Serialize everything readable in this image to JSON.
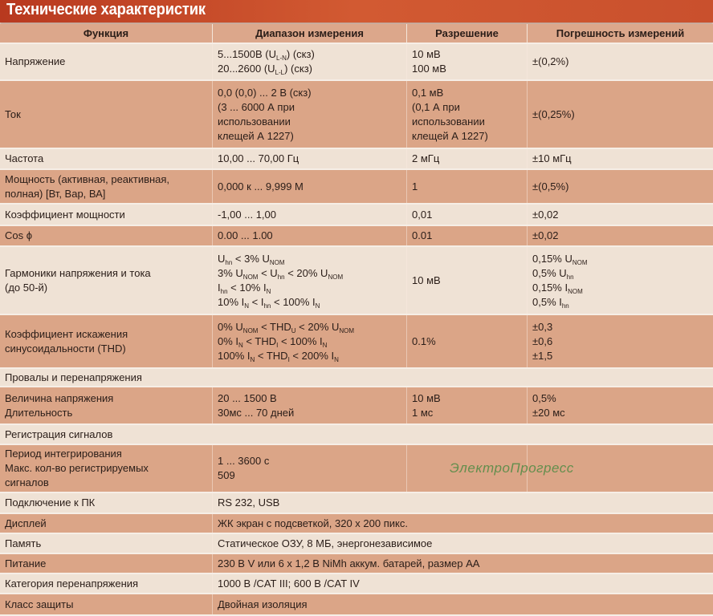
{
  "title": "Технические характеристик",
  "watermark": "ЭлектроПрогресс",
  "colors": {
    "title_bar": "#c84a2a",
    "row_light": "#efe2d5",
    "row_dark": "#dba587",
    "watermark": "#4f8a43"
  },
  "columns": [
    "Функция",
    "Диапазон измерения",
    "Разрешение",
    "Погрешность измерений"
  ],
  "rows": [
    {
      "cells": [
        [
          [
            {
              "t": "Напряжение"
            }
          ]
        ],
        [
          [
            {
              "t": "5...1500В (U"
            },
            {
              "sub": "L-N"
            },
            {
              "t": ") (скз)"
            }
          ],
          [
            {
              "t": "20...2600 (U"
            },
            {
              "sub": "L-L"
            },
            {
              "t": ") (скз)"
            }
          ]
        ],
        [
          [
            {
              "t": "10 мВ"
            }
          ],
          [
            {
              "t": "100 мВ"
            }
          ]
        ],
        [
          [
            {
              "t": "±(0,2%)"
            }
          ]
        ]
      ]
    },
    {
      "cells": [
        [
          [
            {
              "t": "Ток"
            }
          ]
        ],
        [
          [
            {
              "t": "0,0 (0,0) ... 2 В (скз)"
            }
          ],
          [
            {
              "t": "(3 ... 6000 А при"
            }
          ],
          [
            {
              "t": "использовании"
            }
          ],
          [
            {
              "t": "клещей А 1227)"
            }
          ]
        ],
        [
          [
            {
              "t": "0,1 мВ"
            }
          ],
          [
            {
              "t": "(0,1 А при"
            }
          ],
          [
            {
              "t": "использовании"
            }
          ],
          [
            {
              "t": "клещей А 1227)"
            }
          ]
        ],
        [
          [
            {
              "t": "±(0,25%)"
            }
          ]
        ]
      ]
    },
    {
      "cells": [
        [
          [
            {
              "t": "Частота"
            }
          ]
        ],
        [
          [
            {
              "t": "10,00 ... 70,00 Гц"
            }
          ]
        ],
        [
          [
            {
              "t": "2 мГц"
            }
          ]
        ],
        [
          [
            {
              "t": "±10 мГц"
            }
          ]
        ]
      ]
    },
    {
      "cells": [
        [
          [
            {
              "t": "Мощность (активная, реактивная,"
            }
          ],
          [
            {
              "t": "полная) [Вт, Вар, ВА]"
            }
          ]
        ],
        [
          [
            {
              "t": "0,000 к ... 9,999 М"
            }
          ]
        ],
        [
          [
            {
              "t": "1"
            }
          ]
        ],
        [
          [
            {
              "t": "±(0,5%)"
            }
          ]
        ]
      ]
    },
    {
      "cells": [
        [
          [
            {
              "t": "Коэффициент мощности"
            }
          ]
        ],
        [
          [
            {
              "t": "-1,00 ... 1,00"
            }
          ]
        ],
        [
          [
            {
              "t": "0,01"
            }
          ]
        ],
        [
          [
            {
              "t": "±0,02"
            }
          ]
        ]
      ]
    },
    {
      "cells": [
        [
          [
            {
              "t": "Cos ϕ"
            }
          ]
        ],
        [
          [
            {
              "t": "0.00 ... 1.00"
            }
          ]
        ],
        [
          [
            {
              "t": "0.01"
            }
          ]
        ],
        [
          [
            {
              "t": "±0,02"
            }
          ]
        ]
      ]
    },
    {
      "cells": [
        [
          [
            {
              "t": "Гармоники напряжения и тока"
            }
          ],
          [
            {
              "t": "(до 50-й)"
            }
          ]
        ],
        [
          [
            {
              "t": "U"
            },
            {
              "sub": "hn"
            },
            {
              "t": " < 3% U"
            },
            {
              "sub": "NOM"
            }
          ],
          [
            {
              "t": "3% U"
            },
            {
              "sub": "NOM"
            },
            {
              "t": " < U"
            },
            {
              "sub": "hn"
            },
            {
              "t": " < 20% U"
            },
            {
              "sub": "NOM"
            }
          ],
          [
            {
              "t": "I"
            },
            {
              "sub": "hn"
            },
            {
              "t": " < 10% I"
            },
            {
              "sub": "N"
            }
          ],
          [
            {
              "t": "10% I"
            },
            {
              "sub": "N"
            },
            {
              "t": " < I"
            },
            {
              "sub": "hn"
            },
            {
              "t": " < 100% I"
            },
            {
              "sub": "N"
            }
          ]
        ],
        [
          [
            {
              "t": "10 мВ"
            }
          ]
        ],
        [
          [
            {
              "t": "0,15% U"
            },
            {
              "sub": "NOM"
            }
          ],
          [
            {
              "t": "0,5% U"
            },
            {
              "sub": "hn"
            }
          ],
          [
            {
              "t": "0,15% I"
            },
            {
              "sub": "NOM"
            }
          ],
          [
            {
              "t": "0,5% I"
            },
            {
              "sub": "hn"
            }
          ]
        ]
      ]
    },
    {
      "cells": [
        [
          [
            {
              "t": "Коэффициент искажения"
            }
          ],
          [
            {
              "t": "синусоидальности (THD)"
            }
          ]
        ],
        [
          [
            {
              "t": "0% U"
            },
            {
              "sub": "NOM"
            },
            {
              "t": " < THD"
            },
            {
              "sub": "U"
            },
            {
              "t": " < 20% U"
            },
            {
              "sub": "NOM"
            }
          ],
          [
            {
              "t": "0% I"
            },
            {
              "sub": "N"
            },
            {
              "t": " < THD"
            },
            {
              "sub": "I"
            },
            {
              "t": " < 100% I"
            },
            {
              "sub": "N"
            }
          ],
          [
            {
              "t": "100% I"
            },
            {
              "sub": "N"
            },
            {
              "t": " < THD"
            },
            {
              "sub": "I"
            },
            {
              "t": " < 200% I"
            },
            {
              "sub": "N"
            }
          ]
        ],
        [
          [
            {
              "t": "0.1%"
            }
          ]
        ],
        [
          [
            {
              "t": "±0,3"
            }
          ],
          [
            {
              "t": "±0,6"
            }
          ],
          [
            {
              "t": "±1,5"
            }
          ]
        ]
      ]
    },
    {
      "section": "Провалы и перенапряжения"
    },
    {
      "cells": [
        [
          [
            {
              "t": "Величина напряжения"
            }
          ],
          [
            {
              "t": "Длительность"
            }
          ]
        ],
        [
          [
            {
              "t": "20 ... 1500 В"
            }
          ],
          [
            {
              "t": "30мс ... 70 дней"
            }
          ]
        ],
        [
          [
            {
              "t": "10 мВ"
            }
          ],
          [
            {
              "t": "1 мс"
            }
          ]
        ],
        [
          [
            {
              "t": "0,5%"
            }
          ],
          [
            {
              "t": "±20 мс"
            }
          ]
        ]
      ]
    },
    {
      "section": "Регистрация сигналов"
    },
    {
      "cells": [
        [
          [
            {
              "t": "Период интегрирования"
            }
          ],
          [
            {
              "t": "Макс. кол-во регистрируемых"
            }
          ],
          [
            {
              "t": "сигналов"
            }
          ]
        ],
        [
          [
            {
              "t": "1 ... 3600 с"
            }
          ],
          [
            {
              "t": "509"
            }
          ]
        ],
        [],
        []
      ]
    },
    {
      "label": "Подключение к ПК",
      "value": "RS 232, USB"
    },
    {
      "label": "Дисплей",
      "value": "ЖК экран с подсветкой, 320 x 200 пикс."
    },
    {
      "label": "Память",
      "value": "Статическое ОЗУ, 8 МБ, энергонезависимое"
    },
    {
      "label": "Питание",
      "value": "230 В V или 6 x 1,2 В NiMh аккум. батарей, размер АА"
    },
    {
      "label": "Категория перенапряжения",
      "value": "1000 В /CAT III; 600 В /CAT IV"
    },
    {
      "label": "Класс защиты",
      "value": "Двойная изоляция"
    }
  ]
}
